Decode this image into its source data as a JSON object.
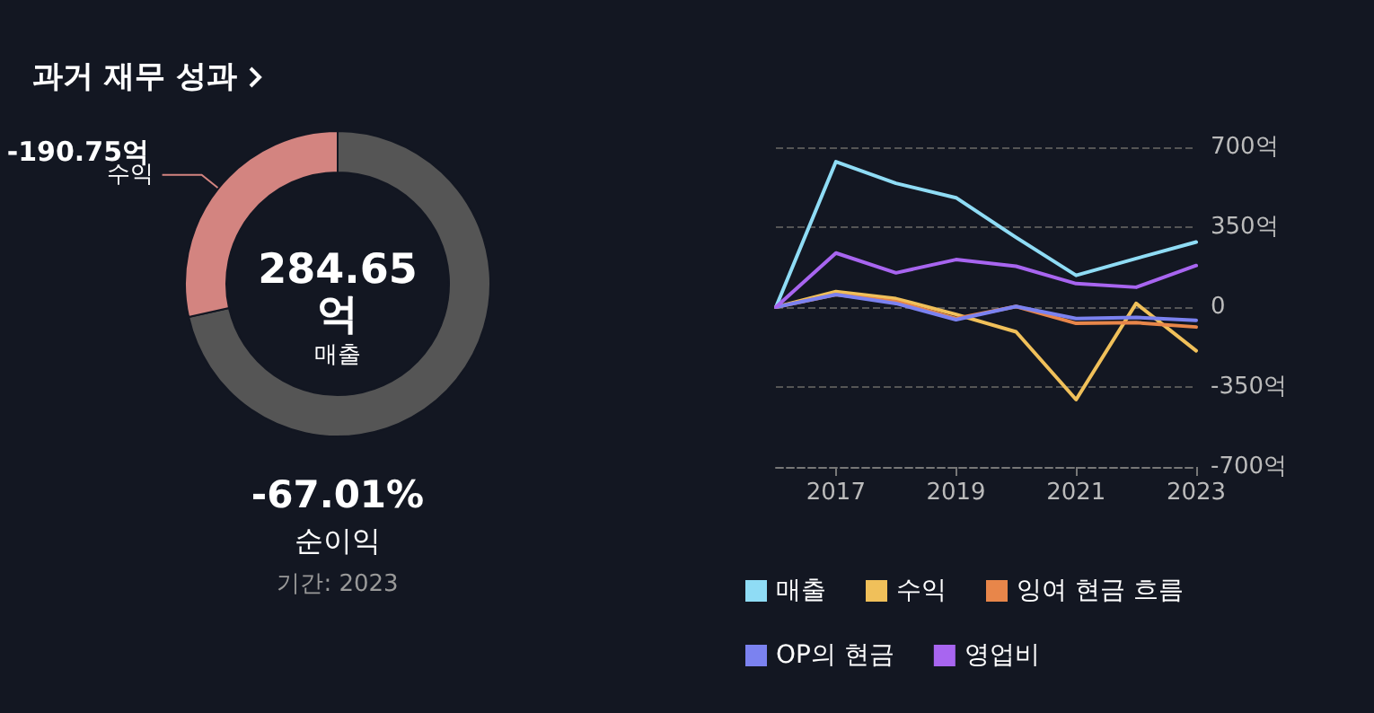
{
  "chart_data": [
    {
      "type": "donut",
      "title": "과거 재무 성과",
      "categories": [
        "매출",
        "수익"
      ],
      "values": [
        71.5,
        28.5
      ],
      "colors": [
        "#555555",
        "#d38480"
      ],
      "annotations": [
        "284.65억",
        "-190.75억",
        "-67.01%",
        "순이익",
        "기간: 2023"
      ]
    },
    {
      "type": "line",
      "x": [
        2016,
        2017,
        2018,
        2019,
        2020,
        2021,
        2022,
        2023
      ],
      "xlim": [
        2016,
        2023
      ],
      "xticks": [
        2017,
        2019,
        2021,
        2023
      ],
      "ylim": [
        -700,
        700
      ],
      "yticks": [
        {
          "value": -700,
          "label": "-700억"
        },
        {
          "value": -350,
          "label": "-350억"
        },
        0,
        {
          "value": 350,
          "label": "350억"
        },
        {
          "value": 700,
          "label": "700억"
        }
      ],
      "series": [
        {
          "name": "매출",
          "color": "#8fdcf5",
          "values": [
            0,
            637,
            542,
            479,
            305,
            139,
            213,
            285
          ]
        },
        {
          "name": "수익",
          "color": "#f0c05a",
          "values": [
            0,
            68,
            37,
            -32,
            -108,
            -405,
            16,
            -191
          ]
        },
        {
          "name": "잉여 현금 흐름",
          "color": "#e8864a",
          "values": [
            0,
            55,
            24,
            -50,
            3,
            -71,
            -68,
            -87
          ]
        },
        {
          "name": "OP의 현금",
          "color": "#7b82f0",
          "values": [
            0,
            55,
            16,
            -55,
            3,
            -50,
            -45,
            -58
          ]
        },
        {
          "name": "영업비",
          "color": "#a865f0",
          "values": [
            0,
            237,
            150,
            208,
            179,
            103,
            87,
            182
          ]
        }
      ],
      "grid": "y",
      "legend": "bottom",
      "marker": "none",
      "line_style": "solid"
    }
  ]
}
